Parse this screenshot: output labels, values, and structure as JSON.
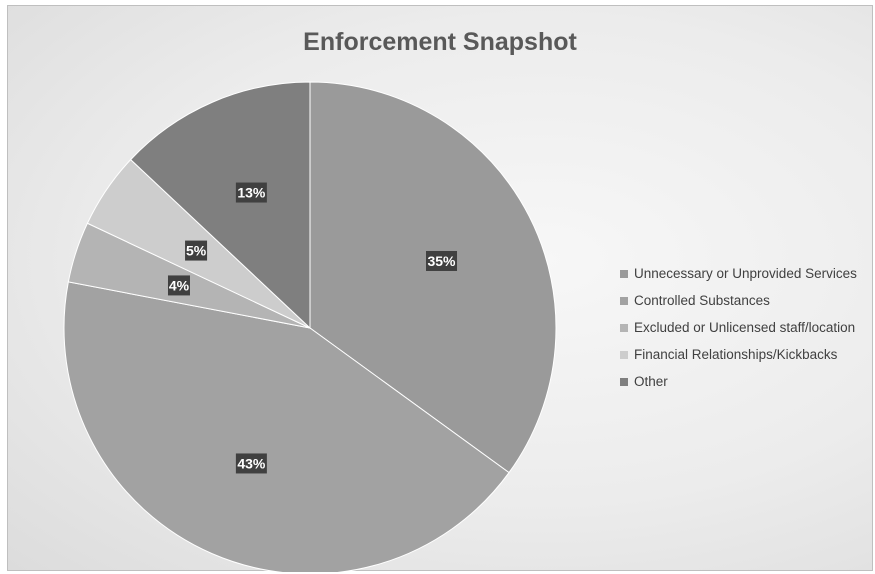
{
  "chart_data": {
    "type": "pie",
    "title": "Enforcement Snapshot",
    "series": [
      {
        "name": "Unnecessary or Unprovided Services",
        "value": 35,
        "label": "35%",
        "color": "#9a9a9a"
      },
      {
        "name": "Controlled Substances",
        "value": 43,
        "label": "43%",
        "color": "#a2a2a2"
      },
      {
        "name": "Excluded or Unlicensed staff/location",
        "value": 4,
        "label": "4%",
        "color": "#b4b4b4"
      },
      {
        "name": "Financial Relationships/Kickbacks",
        "value": 5,
        "label": "5%",
        "color": "#cdcdcd"
      },
      {
        "name": "Other",
        "value": 13,
        "label": "13%",
        "color": "#7f7f7f"
      }
    ],
    "legend_position": "right"
  }
}
